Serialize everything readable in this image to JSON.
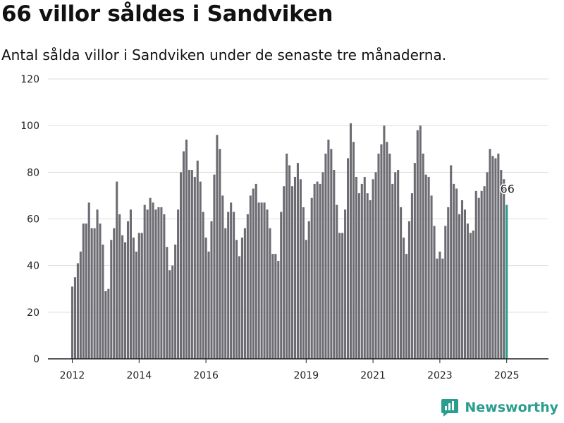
{
  "header": {
    "title": "66 villor såldes i Sandviken",
    "subtitle": "Antal sålda villor i Sandviken under de senaste tre månaderna."
  },
  "brand": {
    "name": "Newsworthy"
  },
  "colors": {
    "bar": "#6d6c72",
    "highlight": "#2a9d8f",
    "grid": "#dddddd",
    "axis": "#222222"
  },
  "chart_data": {
    "type": "bar",
    "title": "66 villor såldes i Sandviken",
    "subtitle": "Antal sålda villor i Sandviken under de senaste tre månaderna.",
    "xlabel": "",
    "ylabel": "",
    "ylim": [
      0,
      120
    ],
    "yticks": [
      0,
      20,
      40,
      60,
      80,
      100,
      120
    ],
    "xticks": [
      "2012",
      "2014",
      "2016",
      "2019",
      "2021",
      "2023",
      "2025"
    ],
    "grid": true,
    "highlight_label": "66",
    "series": [
      {
        "period": "2012",
        "values": [
          31,
          35,
          41,
          46,
          58,
          58,
          67,
          56,
          56,
          64,
          58,
          49
        ]
      },
      {
        "period": "2013",
        "values": [
          29,
          30,
          51,
          56,
          76,
          62,
          53,
          50,
          59,
          64,
          52,
          46
        ]
      },
      {
        "period": "2014",
        "values": [
          54,
          54,
          66,
          64,
          69,
          67,
          64,
          65,
          65,
          62,
          48,
          38
        ]
      },
      {
        "period": "2015",
        "values": [
          40,
          49,
          64,
          80,
          89,
          94,
          81,
          81,
          78,
          85,
          76,
          63
        ]
      },
      {
        "period": "2016",
        "values": [
          52,
          46,
          59,
          79,
          96,
          90,
          70,
          56,
          63,
          67,
          63,
          51
        ]
      },
      {
        "period": "2017",
        "values": [
          44,
          52,
          56,
          62,
          70,
          73,
          75,
          67,
          67,
          67,
          64,
          56
        ]
      },
      {
        "period": "2018",
        "values": [
          45,
          45,
          42,
          63,
          74,
          88,
          83,
          74,
          78,
          84,
          77,
          65
        ]
      },
      {
        "period": "2019",
        "values": [
          51,
          59,
          69,
          75,
          76,
          75,
          80,
          88,
          94,
          90,
          81,
          66
        ]
      },
      {
        "period": "2020",
        "values": [
          54,
          54,
          64,
          86,
          101,
          93,
          78,
          71,
          75,
          78,
          71,
          68
        ]
      },
      {
        "period": "2021",
        "values": [
          77,
          80,
          88,
          92,
          100,
          93,
          88,
          75,
          80,
          81,
          65,
          52
        ]
      },
      {
        "period": "2022",
        "values": [
          45,
          59,
          71,
          84,
          98,
          100,
          88,
          79,
          78,
          70,
          57,
          43
        ]
      },
      {
        "period": "2023",
        "values": [
          46,
          43,
          57,
          65,
          83,
          75,
          73,
          62,
          68,
          64,
          58,
          54
        ]
      },
      {
        "period": "2024",
        "values": [
          55,
          72,
          69,
          72,
          74,
          80,
          90,
          87,
          86,
          88,
          81,
          77
        ]
      },
      {
        "period": "2025",
        "values": [
          66
        ]
      }
    ]
  }
}
